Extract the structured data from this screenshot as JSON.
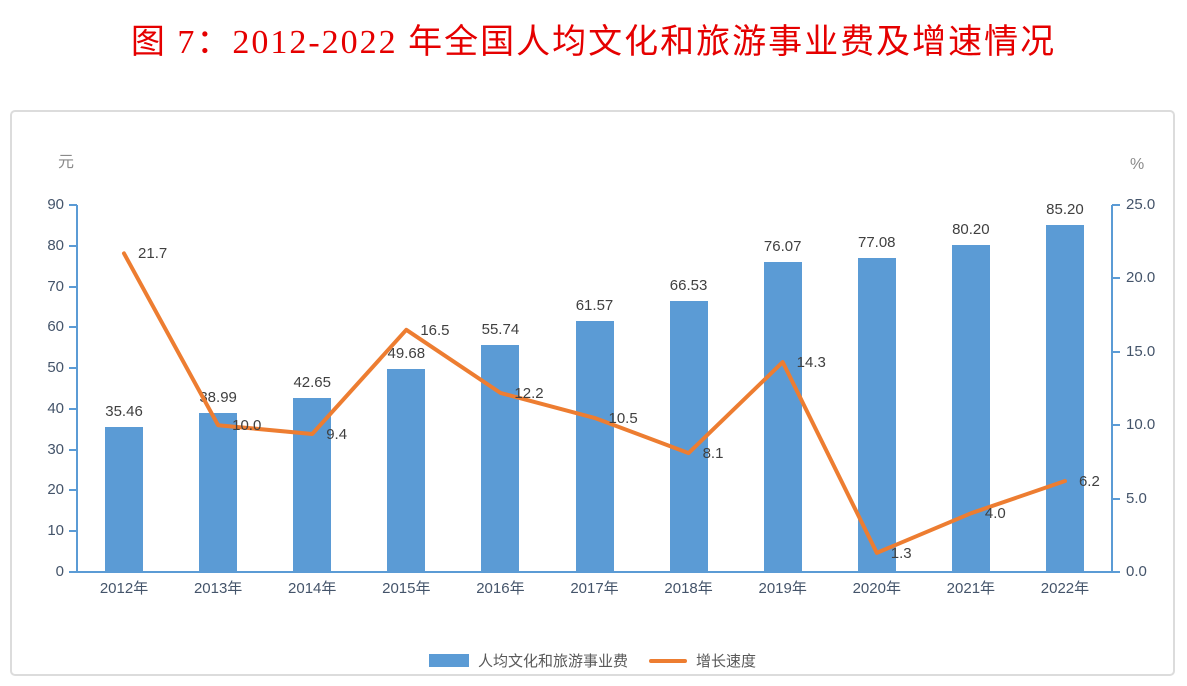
{
  "title": "图 7：2012-2022 年全国人均文化和旅游事业费及增速情况",
  "title_color": "#e50000",
  "units": {
    "left": "元",
    "right": "%"
  },
  "legend": {
    "bar_label": "人均文化和旅游事业费",
    "line_label": "增长速度"
  },
  "colors": {
    "bar": "#5B9BD5",
    "line": "#ED7D31",
    "axis": "#5B9BD5",
    "tick_text": "#44546A",
    "data_label_text": "#404040",
    "border": "#dcdcdc"
  },
  "chart_data": {
    "type": "bar",
    "subtype": "combo-bar-line-dual-axis",
    "title": "图 7：2012-2022 年全国人均文化和旅游事业费及增速情况",
    "categories": [
      "2012年",
      "2013年",
      "2014年",
      "2015年",
      "2016年",
      "2017年",
      "2018年",
      "2019年",
      "2020年",
      "2021年",
      "2022年"
    ],
    "series": [
      {
        "name": "人均文化和旅游事业费",
        "type": "bar",
        "axis": "left",
        "values": [
          35.46,
          38.99,
          42.65,
          49.68,
          55.74,
          61.57,
          66.53,
          76.07,
          77.08,
          80.2,
          85.2
        ],
        "labels": [
          "35.46",
          "38.99",
          "42.65",
          "49.68",
          "55.74",
          "61.57",
          "66.53",
          "76.07",
          "77.08",
          "80.20",
          "85.20"
        ],
        "color": "#5B9BD5"
      },
      {
        "name": "增长速度",
        "type": "line",
        "axis": "right",
        "values": [
          21.7,
          10.0,
          9.4,
          16.5,
          12.2,
          10.5,
          8.1,
          14.3,
          1.3,
          4.0,
          6.2
        ],
        "labels": [
          "21.7",
          "10.0",
          "9.4",
          "16.5",
          "12.2",
          "10.5",
          "8.1",
          "14.3",
          "1.3",
          "4.0",
          "6.2"
        ],
        "color": "#ED7D31"
      }
    ],
    "left_axis": {
      "label": "元",
      "min": 0,
      "max": 90,
      "step": 10,
      "ticks": [
        "0",
        "10",
        "20",
        "30",
        "40",
        "50",
        "60",
        "70",
        "80",
        "90"
      ]
    },
    "right_axis": {
      "label": "%",
      "min": 0,
      "max": 25,
      "step": 5,
      "ticks": [
        "0.0",
        "5.0",
        "10.0",
        "15.0",
        "20.0",
        "25.0"
      ]
    },
    "grid": false,
    "legend_position": "bottom"
  }
}
